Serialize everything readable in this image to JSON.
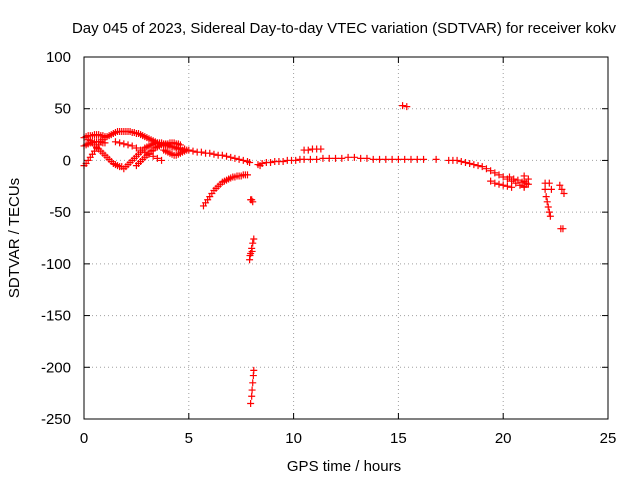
{
  "chart_data": {
    "type": "scatter",
    "title": "Day 045 of 2023, Sidereal Day-to-day VTEC variation (SDTVAR) for receiver kokv",
    "xlabel": "GPS time / hours",
    "ylabel": "SDTVAR / TECUs",
    "xlim": [
      0,
      25
    ],
    "ylim": [
      -250,
      100
    ],
    "xticks": [
      0,
      5,
      10,
      15,
      20,
      25
    ],
    "yticks": [
      100,
      50,
      0,
      -50,
      -100,
      -150,
      -200,
      -250
    ],
    "grid": true,
    "marker": "+",
    "color": "#ff0000",
    "series": [
      {
        "name": "SDTVAR",
        "points": [
          [
            0.0,
            22
          ],
          [
            0.1,
            23
          ],
          [
            0.2,
            24
          ],
          [
            0.3,
            24
          ],
          [
            0.4,
            24
          ],
          [
            0.5,
            25
          ],
          [
            0.6,
            25
          ],
          [
            0.7,
            25
          ],
          [
            0.8,
            24
          ],
          [
            0.9,
            24
          ],
          [
            1.0,
            23
          ],
          [
            0.0,
            14
          ],
          [
            0.1,
            15
          ],
          [
            0.2,
            16
          ],
          [
            0.3,
            17
          ],
          [
            0.4,
            17
          ],
          [
            0.5,
            18
          ],
          [
            0.6,
            18
          ],
          [
            0.7,
            18
          ],
          [
            0.8,
            18
          ],
          [
            0.9,
            17
          ],
          [
            1.0,
            17
          ],
          [
            0.0,
            -5
          ],
          [
            0.1,
            -3
          ],
          [
            0.2,
            0
          ],
          [
            0.3,
            3
          ],
          [
            0.4,
            6
          ],
          [
            0.5,
            9
          ],
          [
            0.6,
            12
          ],
          [
            0.7,
            15
          ],
          [
            0.8,
            18
          ],
          [
            0.9,
            20
          ],
          [
            1.0,
            22
          ],
          [
            1.1,
            23
          ],
          [
            1.2,
            24
          ],
          [
            1.3,
            25
          ],
          [
            1.4,
            26
          ],
          [
            1.5,
            27
          ],
          [
            1.6,
            28
          ],
          [
            1.7,
            28
          ],
          [
            1.8,
            28
          ],
          [
            1.9,
            28
          ],
          [
            2.0,
            28
          ],
          [
            2.1,
            28
          ],
          [
            2.2,
            28
          ],
          [
            2.3,
            27
          ],
          [
            2.4,
            27
          ],
          [
            2.5,
            26
          ],
          [
            2.6,
            26
          ],
          [
            2.7,
            25
          ],
          [
            2.8,
            24
          ],
          [
            2.9,
            23
          ],
          [
            3.0,
            22
          ],
          [
            3.1,
            21
          ],
          [
            3.2,
            20
          ],
          [
            3.3,
            19
          ],
          [
            3.4,
            18
          ],
          [
            3.5,
            17
          ],
          [
            3.6,
            16
          ],
          [
            3.7,
            16
          ],
          [
            3.8,
            15
          ],
          [
            3.9,
            15
          ],
          [
            4.0,
            14
          ],
          [
            4.2,
            13
          ],
          [
            4.4,
            12
          ],
          [
            4.6,
            12
          ],
          [
            4.8,
            11
          ],
          [
            0.2,
            20
          ],
          [
            0.3,
            19
          ],
          [
            0.4,
            17
          ],
          [
            0.5,
            15
          ],
          [
            0.6,
            13
          ],
          [
            0.7,
            11
          ],
          [
            0.8,
            9
          ],
          [
            0.9,
            7
          ],
          [
            1.0,
            5
          ],
          [
            1.1,
            3
          ],
          [
            1.2,
            1
          ],
          [
            1.3,
            -1
          ],
          [
            1.4,
            -3
          ],
          [
            1.5,
            -4
          ],
          [
            1.6,
            -5
          ],
          [
            1.7,
            -6
          ],
          [
            1.8,
            -6
          ],
          [
            1.9,
            -8
          ],
          [
            2.0,
            -6
          ],
          [
            2.1,
            -4
          ],
          [
            2.2,
            -2
          ],
          [
            2.3,
            0
          ],
          [
            2.4,
            2
          ],
          [
            2.5,
            4
          ],
          [
            2.6,
            6
          ],
          [
            2.7,
            8
          ],
          [
            2.8,
            10
          ],
          [
            2.9,
            12
          ],
          [
            3.0,
            13
          ],
          [
            3.1,
            14
          ],
          [
            3.2,
            15
          ],
          [
            3.3,
            16
          ],
          [
            3.4,
            17
          ],
          [
            3.5,
            17
          ],
          [
            3.6,
            17
          ],
          [
            3.7,
            17
          ],
          [
            3.8,
            16
          ],
          [
            3.9,
            15
          ],
          [
            4.0,
            15
          ],
          [
            4.1,
            14
          ],
          [
            4.2,
            13
          ],
          [
            4.3,
            13
          ],
          [
            4.4,
            12
          ],
          [
            4.5,
            11
          ],
          [
            4.6,
            11
          ],
          [
            4.7,
            10
          ],
          [
            1.5,
            18
          ],
          [
            1.7,
            17
          ],
          [
            1.9,
            16
          ],
          [
            2.1,
            15
          ],
          [
            2.3,
            14
          ],
          [
            2.5,
            12
          ],
          [
            2.7,
            10
          ],
          [
            2.9,
            8
          ],
          [
            3.1,
            6
          ],
          [
            3.3,
            4
          ],
          [
            3.5,
            2
          ],
          [
            3.7,
            0
          ],
          [
            2.5,
            -5
          ],
          [
            2.6,
            -3
          ],
          [
            2.7,
            -1
          ],
          [
            2.8,
            1
          ],
          [
            2.9,
            3
          ],
          [
            3.0,
            5
          ],
          [
            3.1,
            7
          ],
          [
            3.2,
            9
          ],
          [
            3.3,
            10
          ],
          [
            3.4,
            12
          ],
          [
            3.5,
            13
          ],
          [
            3.6,
            14
          ],
          [
            3.7,
            15
          ],
          [
            3.8,
            15
          ],
          [
            3.9,
            16
          ],
          [
            4.0,
            16
          ],
          [
            4.1,
            17
          ],
          [
            4.2,
            17
          ],
          [
            4.3,
            17
          ],
          [
            4.4,
            16
          ],
          [
            4.5,
            16
          ],
          [
            4.6,
            15
          ],
          [
            3.8,
            10
          ],
          [
            3.9,
            9
          ],
          [
            4.0,
            8
          ],
          [
            4.1,
            7
          ],
          [
            4.2,
            6
          ],
          [
            4.3,
            5
          ],
          [
            4.4,
            5
          ],
          [
            4.5,
            6
          ],
          [
            4.6,
            7
          ],
          [
            4.7,
            8
          ],
          [
            4.8,
            9
          ],
          [
            4.9,
            10
          ],
          [
            5.0,
            10
          ],
          [
            5.2,
            9
          ],
          [
            5.4,
            8
          ],
          [
            5.6,
            8
          ],
          [
            5.8,
            7
          ],
          [
            6.0,
            7
          ],
          [
            6.2,
            6
          ],
          [
            6.4,
            5
          ],
          [
            6.6,
            5
          ],
          [
            6.8,
            4
          ],
          [
            7.0,
            3
          ],
          [
            7.2,
            2
          ],
          [
            7.4,
            1
          ],
          [
            7.6,
            0
          ],
          [
            7.8,
            -1
          ],
          [
            7.9,
            -2
          ],
          [
            5.7,
            -44
          ],
          [
            5.8,
            -41
          ],
          [
            5.9,
            -38
          ],
          [
            6.0,
            -35
          ],
          [
            6.1,
            -32
          ],
          [
            6.2,
            -29
          ],
          [
            6.3,
            -27
          ],
          [
            6.4,
            -25
          ],
          [
            6.5,
            -23
          ],
          [
            6.6,
            -21
          ],
          [
            6.7,
            -20
          ],
          [
            6.8,
            -19
          ],
          [
            6.9,
            -18
          ],
          [
            7.0,
            -17
          ],
          [
            7.1,
            -16
          ],
          [
            7.2,
            -16
          ],
          [
            7.3,
            -15
          ],
          [
            7.4,
            -15
          ],
          [
            7.5,
            -15
          ],
          [
            7.6,
            -14
          ],
          [
            7.7,
            -14
          ],
          [
            7.8,
            -14
          ],
          [
            7.95,
            -38
          ],
          [
            8.0,
            -38
          ],
          [
            8.05,
            -40
          ],
          [
            7.9,
            -96
          ],
          [
            7.95,
            -90
          ],
          [
            8.0,
            -85
          ],
          [
            8.05,
            -80
          ],
          [
            8.1,
            -76
          ],
          [
            7.92,
            -92
          ],
          [
            8.02,
            -88
          ],
          [
            7.95,
            -235
          ],
          [
            8.0,
            -228
          ],
          [
            8.02,
            -222
          ],
          [
            8.05,
            -215
          ],
          [
            8.08,
            -208
          ],
          [
            8.1,
            -203
          ],
          [
            8.3,
            -4
          ],
          [
            8.4,
            -5
          ],
          [
            8.5,
            -3
          ],
          [
            8.7,
            -2
          ],
          [
            8.9,
            -2
          ],
          [
            9.1,
            -1
          ],
          [
            9.3,
            -1
          ],
          [
            9.5,
            -1
          ],
          [
            9.7,
            0
          ],
          [
            9.9,
            0
          ],
          [
            10.1,
            0
          ],
          [
            10.3,
            1
          ],
          [
            10.5,
            10
          ],
          [
            10.7,
            10
          ],
          [
            10.9,
            11
          ],
          [
            11.1,
            11
          ],
          [
            11.3,
            11
          ],
          [
            10.5,
            1
          ],
          [
            10.8,
            1
          ],
          [
            11.1,
            1
          ],
          [
            11.4,
            2
          ],
          [
            11.7,
            2
          ],
          [
            12.0,
            2
          ],
          [
            12.3,
            2
          ],
          [
            12.6,
            3
          ],
          [
            12.9,
            3
          ],
          [
            13.2,
            2
          ],
          [
            13.5,
            2
          ],
          [
            13.8,
            1
          ],
          [
            14.1,
            1
          ],
          [
            14.4,
            1
          ],
          [
            14.7,
            1
          ],
          [
            15.0,
            1
          ],
          [
            15.3,
            1
          ],
          [
            15.6,
            1
          ],
          [
            15.9,
            1
          ],
          [
            16.2,
            1
          ],
          [
            16.8,
            1
          ],
          [
            15.2,
            53
          ],
          [
            15.4,
            52
          ],
          [
            17.4,
            0
          ],
          [
            17.6,
            0
          ],
          [
            17.8,
            0
          ],
          [
            18.0,
            -1
          ],
          [
            18.2,
            -2
          ],
          [
            18.4,
            -3
          ],
          [
            18.6,
            -4
          ],
          [
            18.8,
            -5
          ],
          [
            19.0,
            -6
          ],
          [
            19.2,
            -8
          ],
          [
            19.4,
            -10
          ],
          [
            19.6,
            -12
          ],
          [
            19.8,
            -14
          ],
          [
            20.0,
            -16
          ],
          [
            20.2,
            -18
          ],
          [
            20.4,
            -20
          ],
          [
            20.6,
            -22
          ],
          [
            20.8,
            -24
          ],
          [
            21.0,
            -25
          ],
          [
            19.4,
            -20
          ],
          [
            19.6,
            -22
          ],
          [
            19.8,
            -23
          ],
          [
            20.0,
            -24
          ],
          [
            20.2,
            -25
          ],
          [
            20.4,
            -26
          ],
          [
            20.3,
            -16
          ],
          [
            20.5,
            -18
          ],
          [
            20.7,
            -19
          ],
          [
            20.9,
            -21
          ],
          [
            21.1,
            -22
          ],
          [
            21.0,
            -15
          ],
          [
            21.0,
            -20
          ],
          [
            21.0,
            -26
          ],
          [
            21.2,
            -18
          ],
          [
            21.2,
            -23
          ],
          [
            22.0,
            -22
          ],
          [
            22.0,
            -28
          ],
          [
            22.05,
            -35
          ],
          [
            22.1,
            -40
          ],
          [
            22.15,
            -45
          ],
          [
            22.2,
            -50
          ],
          [
            22.25,
            -54
          ],
          [
            22.2,
            -22
          ],
          [
            22.3,
            -28
          ],
          [
            22.7,
            -24
          ],
          [
            22.8,
            -28
          ],
          [
            22.9,
            -32
          ],
          [
            22.75,
            -66
          ],
          [
            22.85,
            -66
          ]
        ]
      }
    ]
  }
}
